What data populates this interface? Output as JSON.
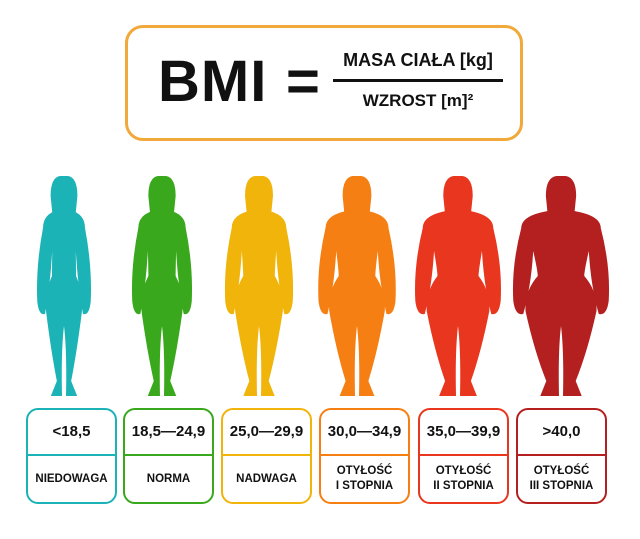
{
  "formula": {
    "lhs": "BMI",
    "equals": "=",
    "numerator": "MASA CIAŁA [kg]",
    "denominator": "WZROST [m]²",
    "border_color": "#f2a93b"
  },
  "categories": [
    {
      "range": "<18,5",
      "label": "NIEDOWAGA",
      "color": "#1bb3b6",
      "icon": "thin-woman-silhouette-icon"
    },
    {
      "range": "18,5—24,9",
      "label": "NORMA",
      "color": "#3aa81d",
      "icon": "normal-woman-silhouette-icon"
    },
    {
      "range": "25,0—29,9",
      "label": "NADWAGA",
      "color": "#f0b40a",
      "icon": "overweight-woman-silhouette-icon"
    },
    {
      "range": "30,0—34,9",
      "label": "OTYŁOŚĆ\nI STOPNIA",
      "color": "#f57f12",
      "icon": "obese-1-woman-silhouette-icon"
    },
    {
      "range": "35,0—39,9",
      "label": "OTYŁOŚĆ\nII STOPNIA",
      "color": "#e8361f",
      "icon": "obese-2-woman-silhouette-icon"
    },
    {
      "range": ">40,0",
      "label": "OTYŁOŚĆ\nIII STOPNIA",
      "color": "#b3201f",
      "icon": "obese-3-woman-silhouette-icon"
    }
  ]
}
